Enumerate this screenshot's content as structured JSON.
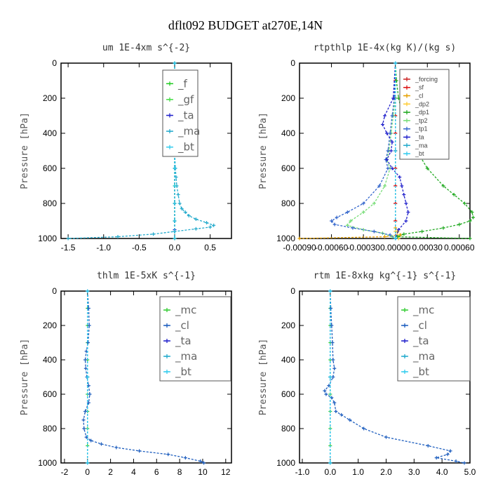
{
  "figure_title": "dflt092  BUDGET at270E,14N",
  "colors": {
    "f": "#22cc22",
    "gf": "#44dd44",
    "ta": "#2222cc",
    "ma": "#22aacc",
    "bt": "#33ccee",
    "mc": "#33cc33",
    "cl": "#1f5fbf",
    "forcing": "#cc2222",
    "sf": "#dd1111",
    "cl_small": "#e6a000",
    "dp2": "#ffcc33",
    "dp1": "#22aa22",
    "tp2": "#77dd77",
    "tp1": "#3366cc",
    "axis": "#000000"
  },
  "chart_data": [
    {
      "type": "line",
      "title": "um  1E-4xm s^{-2}",
      "ylabel": "Pressure [hPa]",
      "xlim": [
        -1.6,
        0.8
      ],
      "ylim": [
        1000,
        0
      ],
      "xticks": [
        "-1.5",
        "-1.0",
        "-0.5",
        "0.0",
        "0.5"
      ],
      "xtick_values": [
        -1.5,
        -1.0,
        -0.5,
        0.0,
        0.5
      ],
      "yticks": [
        "0",
        "200",
        "400",
        "600",
        "800",
        "1000"
      ],
      "ytick_values": [
        0,
        200,
        400,
        600,
        800,
        1000
      ],
      "legend_placement": "top-right",
      "series": [
        {
          "name": "_f",
          "color": "#22cc22",
          "p": [
            0,
            100,
            200,
            300,
            400,
            500,
            600,
            700,
            800,
            900,
            1000
          ],
          "x": [
            0,
            0,
            0,
            0,
            0,
            0,
            0,
            0,
            0,
            0,
            0
          ]
        },
        {
          "name": "_gf",
          "color": "#44dd44",
          "p": [
            0,
            100,
            200,
            300,
            400,
            500,
            600,
            700,
            800,
            900,
            1000
          ],
          "x": [
            0,
            0,
            0,
            0,
            0,
            0,
            0,
            0,
            0,
            0,
            0
          ]
        },
        {
          "name": "_ta",
          "color": "#2222cc",
          "p": [
            0,
            200,
            400,
            600,
            800,
            900,
            950,
            1000
          ],
          "x": [
            0,
            0,
            0,
            0,
            0,
            0,
            0,
            0
          ]
        },
        {
          "name": "_ma",
          "color": "#22aacc",
          "p": [
            0,
            100,
            200,
            300,
            400,
            500,
            600,
            650,
            700,
            750,
            800,
            830,
            850,
            870,
            890,
            910,
            925,
            935,
            945,
            960,
            975,
            990,
            1000
          ],
          "x": [
            0,
            0,
            0,
            0,
            0,
            0,
            0.01,
            0.02,
            0.03,
            0.05,
            0.07,
            0.1,
            0.15,
            0.2,
            0.3,
            0.45,
            0.55,
            0.5,
            0.3,
            0.0,
            -0.3,
            -0.8,
            -1.5
          ]
        },
        {
          "name": "_bt",
          "color": "#33ccee",
          "p": [
            0,
            100,
            200,
            300,
            400,
            500,
            600,
            700,
            800,
            900,
            1000
          ],
          "x": [
            0,
            0,
            0,
            0,
            0,
            0,
            0,
            0,
            0,
            0,
            0
          ]
        }
      ]
    },
    {
      "type": "line",
      "title": "rtpthlp  1E-4x(kg K)/(kg s)",
      "ylabel": "Pressure [hPa]",
      "xlim": [
        -0.0009,
        0.0007
      ],
      "ylim": [
        1000,
        0
      ],
      "xticks": [
        "-0.00090",
        "-0.00060",
        "-0.00030",
        "0.00000",
        "0.00030",
        "0.00060"
      ],
      "xtick_values": [
        -0.0009,
        -0.0006,
        -0.0003,
        0.0,
        0.0003,
        0.0006
      ],
      "yticks": [
        "0",
        "200",
        "400",
        "600",
        "800",
        "1000"
      ],
      "ytick_values": [
        0,
        200,
        400,
        600,
        800,
        1000
      ],
      "legend_placement": "top-right",
      "series": [
        {
          "name": "_forcing",
          "color": "#cc2222",
          "p": [
            0,
            100,
            200,
            300,
            400,
            500,
            600,
            700,
            800,
            900,
            1000
          ],
          "x": [
            0,
            0,
            0,
            0,
            0,
            0,
            0,
            0,
            0,
            0,
            0
          ]
        },
        {
          "name": "_sf",
          "color": "#dd1111",
          "p": [
            0,
            100,
            200,
            300,
            400,
            500,
            600,
            700,
            800,
            900,
            1000
          ],
          "x": [
            0,
            0,
            0,
            0,
            0,
            0,
            0,
            0,
            0,
            0,
            0
          ]
        },
        {
          "name": "_cl",
          "color": "#e6a000",
          "p": [
            940,
            960,
            980,
            990,
            1000
          ],
          "x": [
            0.0,
            2e-05,
            5e-05,
            -0.0001,
            -0.0009
          ]
        },
        {
          "name": "_dp2",
          "color": "#ffcc33",
          "p": [
            960,
            980,
            1000
          ],
          "x": [
            0,
            2e-05,
            3e-05
          ]
        },
        {
          "name": "_dp1",
          "color": "#22aa22",
          "p": [
            0,
            100,
            200,
            300,
            400,
            500,
            600,
            700,
            750,
            800,
            850,
            880,
            900,
            920,
            940,
            960,
            975,
            990,
            1000
          ],
          "x": [
            0,
            1e-05,
            3e-05,
            7e-05,
            0.00012,
            0.0002,
            0.0003,
            0.00045,
            0.00055,
            0.00065,
            0.00072,
            0.00073,
            0.0007,
            0.0006,
            0.00045,
            0.00025,
            8e-05,
            2e-05,
            0.0007
          ]
        },
        {
          "name": "_tp2",
          "color": "#77dd77",
          "p": [
            0,
            200,
            300,
            400,
            500,
            550,
            600,
            700,
            800,
            850,
            900,
            925,
            950,
            970,
            990,
            1000
          ],
          "x": [
            0,
            0,
            -2e-05,
            -4e-05,
            -6e-05,
            -8e-05,
            -5e-05,
            -0.0001,
            -0.0002,
            -0.0003,
            -0.00042,
            -0.00045,
            -0.0003,
            -0.00012,
            -3e-05,
            0
          ]
        },
        {
          "name": "_tp1",
          "color": "#3366cc",
          "p": [
            0,
            200,
            300,
            400,
            500,
            550,
            600,
            700,
            800,
            850,
            880,
            900,
            920,
            940,
            960,
            980,
            1000
          ],
          "x": [
            0,
            -1e-05,
            -3e-05,
            -5e-05,
            -7e-05,
            -9e-05,
            -7e-05,
            -0.00015,
            -0.0003,
            -0.00045,
            -0.00055,
            -0.0006,
            -0.00057,
            -0.0004,
            -0.0002,
            -5e-05,
            0
          ]
        },
        {
          "name": "_ta",
          "color": "#2222cc",
          "p": [
            0,
            200,
            300,
            350,
            400,
            450,
            500,
            550,
            600,
            650,
            700,
            750,
            800,
            850,
            900,
            950,
            1000
          ],
          "x": [
            0,
            -2e-05,
            -0.0001,
            -0.00012,
            -8e-05,
            -3e-05,
            -4e-05,
            -8e-05,
            -3e-05,
            4e-05,
            6e-05,
            8e-05,
            0.0001,
            0.00012,
            0.0001,
            3e-05,
            0
          ]
        },
        {
          "name": "_ma",
          "color": "#22aacc",
          "p": [
            0,
            500,
            1000
          ],
          "x": [
            0,
            0,
            0
          ]
        },
        {
          "name": "_bt",
          "color": "#33ccee",
          "p": [
            0,
            500,
            1000
          ],
          "x": [
            0,
            0,
            0
          ]
        }
      ]
    },
    {
      "type": "line",
      "title": "thlm  1E-5xK s^{-1}",
      "ylabel": "Pressure [hPa]",
      "xlim": [
        -2.3,
        12.5
      ],
      "ylim": [
        1000,
        0
      ],
      "xticks": [
        "-2",
        "0",
        "2",
        "4",
        "6",
        "8",
        "10",
        "12"
      ],
      "xtick_values": [
        -2,
        0,
        2,
        4,
        6,
        8,
        10,
        12
      ],
      "yticks": [
        "0",
        "200",
        "400",
        "600",
        "800",
        "1000"
      ],
      "ytick_values": [
        0,
        200,
        400,
        600,
        800,
        1000
      ],
      "legend_placement": "top-right",
      "series": [
        {
          "name": "_mc",
          "color": "#33cc33",
          "p": [
            0,
            100,
            200,
            300,
            400,
            500,
            600,
            700,
            800,
            900,
            1000
          ],
          "x": [
            0,
            0,
            0,
            0,
            0,
            0,
            0,
            0,
            0,
            0,
            0
          ]
        },
        {
          "name": "_cl",
          "color": "#1f5fbf",
          "p": [
            0,
            100,
            200,
            300,
            350,
            400,
            450,
            500,
            550,
            600,
            650,
            700,
            750,
            800,
            850,
            870,
            890,
            910,
            930,
            950,
            970,
            990,
            1000
          ],
          "x": [
            0,
            0.1,
            0.15,
            0.05,
            -0.1,
            -0.2,
            -0.15,
            -0.05,
            0.1,
            0.2,
            0.1,
            -0.2,
            -0.35,
            -0.3,
            -0.1,
            0.3,
            1.2,
            2.5,
            4.5,
            7.0,
            8.5,
            9.8,
            10.1
          ]
        },
        {
          "name": "_ta",
          "color": "#2222cc",
          "p": [
            0,
            500,
            1000
          ],
          "x": [
            0,
            0,
            0
          ]
        },
        {
          "name": "_ma",
          "color": "#22aacc",
          "p": [
            0,
            500,
            1000
          ],
          "x": [
            0,
            0,
            0
          ]
        },
        {
          "name": "_bt",
          "color": "#33ccee",
          "p": [
            0,
            500,
            1000
          ],
          "x": [
            0,
            0,
            0
          ]
        }
      ]
    },
    {
      "type": "line",
      "title": "rtm  1E-8xkg kg^{-1} s^{-1}",
      "ylabel": "Pressure [hPa]",
      "xlim": [
        -1.1,
        5.0
      ],
      "ylim": [
        1000,
        0
      ],
      "xticks": [
        "-1.0",
        "0.0",
        "1.0",
        "2.0",
        "3.0",
        "4.0",
        "5.0"
      ],
      "xtick_values": [
        -1.0,
        0.0,
        1.0,
        2.0,
        3.0,
        4.0,
        5.0
      ],
      "yticks": [
        "0",
        "200",
        "400",
        "600",
        "800",
        "1000"
      ],
      "ytick_values": [
        0,
        200,
        400,
        600,
        800,
        1000
      ],
      "legend_placement": "top-right",
      "series": [
        {
          "name": "_mc",
          "color": "#33cc33",
          "p": [
            0,
            100,
            200,
            300,
            400,
            500,
            600,
            700,
            800,
            900,
            1000
          ],
          "x": [
            0,
            0,
            0,
            0,
            0,
            0,
            0,
            0,
            0,
            0,
            0
          ]
        },
        {
          "name": "_cl",
          "color": "#1f5fbf",
          "p": [
            0,
            100,
            200,
            300,
            400,
            450,
            500,
            550,
            580,
            600,
            620,
            650,
            700,
            720,
            750,
            800,
            850,
            900,
            930,
            950,
            970,
            990,
            1000
          ],
          "x": [
            0,
            0.02,
            0.05,
            0.08,
            0.1,
            0.15,
            0.1,
            -0.05,
            -0.2,
            -0.15,
            0.05,
            0.15,
            0.2,
            0.4,
            0.7,
            1.2,
            2.0,
            3.5,
            4.3,
            4.2,
            3.8,
            4.5,
            4.8
          ]
        },
        {
          "name": "_ta",
          "color": "#2222cc",
          "p": [
            0,
            500,
            1000
          ],
          "x": [
            0,
            0,
            0
          ]
        },
        {
          "name": "_ma",
          "color": "#22aacc",
          "p": [
            0,
            500,
            1000
          ],
          "x": [
            0,
            0,
            0
          ]
        },
        {
          "name": "_bt",
          "color": "#33ccee",
          "p": [
            0,
            500,
            1000
          ],
          "x": [
            0,
            0,
            0
          ]
        }
      ]
    }
  ]
}
